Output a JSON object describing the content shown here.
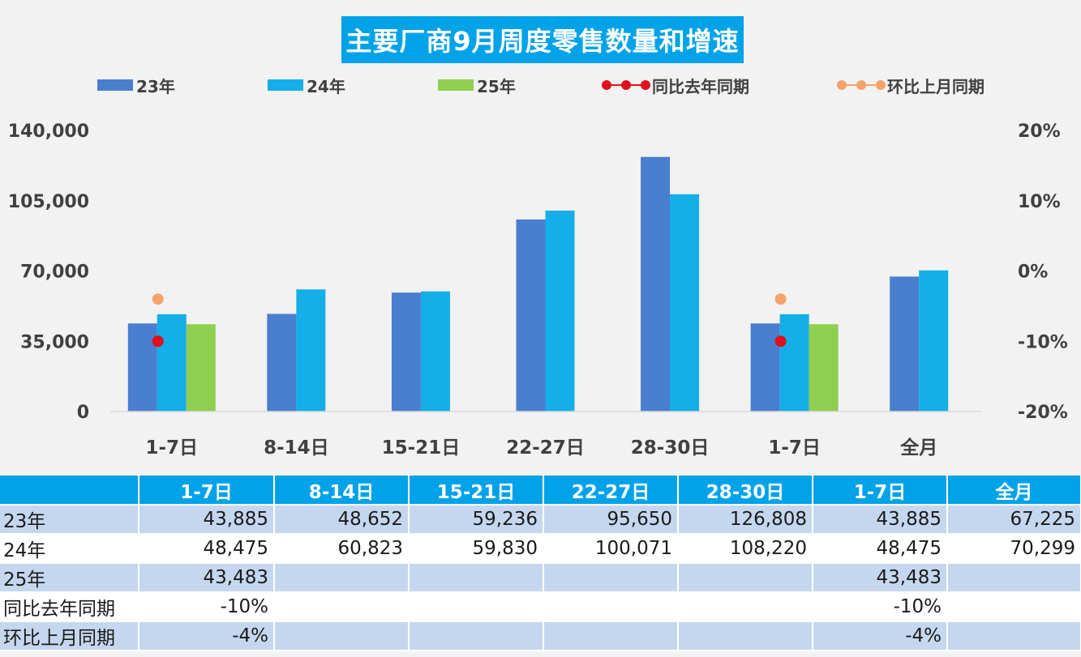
{
  "chart_data": {
    "type": "bar",
    "title": "主要厂商9月周度零售数量和增速",
    "categories": [
      "1-7日",
      "8-14日",
      "15-21日",
      "22-27日",
      "28-30日",
      "1-7日",
      "全月"
    ],
    "series": [
      {
        "name": "23年",
        "kind": "bar",
        "color": "#4a7ecf",
        "values": [
          43885,
          48652,
          59236,
          95650,
          126808,
          43885,
          67225
        ]
      },
      {
        "name": "24年",
        "kind": "bar",
        "color": "#14aee8",
        "values": [
          48475,
          60823,
          59830,
          100071,
          108220,
          48475,
          70299
        ]
      },
      {
        "name": "25年",
        "kind": "bar",
        "color": "#8fcf50",
        "values": [
          43483,
          null,
          null,
          null,
          null,
          43483,
          null
        ]
      },
      {
        "name": "同比去年同期",
        "kind": "point",
        "axis": "right",
        "color": "#e0101e",
        "values": [
          -10,
          null,
          null,
          null,
          null,
          -10,
          null
        ]
      },
      {
        "name": "环比上月同期",
        "kind": "point",
        "axis": "right",
        "color": "#f5a36a",
        "values": [
          -4,
          null,
          null,
          null,
          null,
          -4,
          null
        ]
      }
    ],
    "y_left": {
      "range": [
        0,
        140000
      ],
      "ticks": [
        "0",
        "35,000",
        "70,000",
        "105,000",
        "140,000"
      ]
    },
    "y_right": {
      "range": [
        -20,
        20
      ],
      "ticks": [
        "-20%",
        "-10%",
        "0%",
        "10%",
        "20%"
      ]
    },
    "legend_position": "top",
    "grid": false
  },
  "table": {
    "header": [
      "",
      "1-7日",
      "8-14日",
      "15-21日",
      "22-27日",
      "28-30日",
      "1-7日",
      "全月"
    ],
    "rows": [
      {
        "label": "23年",
        "cells": [
          "43,885",
          "48,652",
          "59,236",
          "95,650",
          "126,808",
          "43,885",
          "67,225"
        ]
      },
      {
        "label": "24年",
        "cells": [
          "48,475",
          "60,823",
          "59,830",
          "100,071",
          "108,220",
          "48,475",
          "70,299"
        ]
      },
      {
        "label": "25年",
        "cells": [
          "43,483",
          "",
          "",
          "",
          "",
          "43,483",
          ""
        ]
      },
      {
        "label": "同比去年同期",
        "cells": [
          "-10%",
          "",
          "",
          "",
          "",
          "-10%",
          ""
        ]
      },
      {
        "label": "环比上月同期",
        "cells": [
          "-4%",
          "",
          "",
          "",
          "",
          "-4%",
          ""
        ]
      }
    ]
  }
}
